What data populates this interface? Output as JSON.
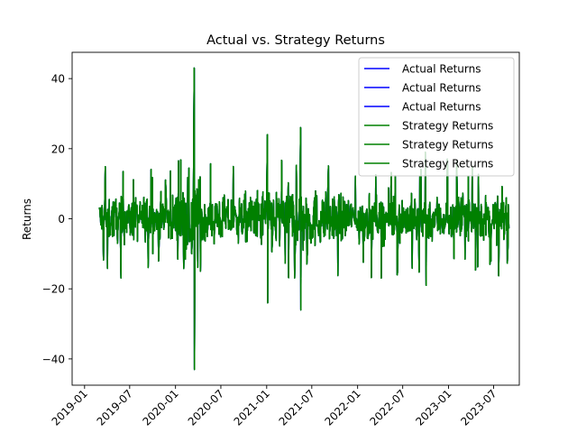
{
  "chart_data": {
    "type": "line",
    "title": "Actual vs. Strategy Returns",
    "xlabel": "",
    "ylabel": "Returns",
    "x_tick_labels": [
      "2019-01",
      "2019-07",
      "2020-01",
      "2020-07",
      "2021-01",
      "2021-07",
      "2022-01",
      "2022-07",
      "2023-01",
      "2023-07"
    ],
    "y_tick_labels": [
      "−40",
      "−20",
      "0",
      "20",
      "40"
    ],
    "y_ticks": [
      -40,
      -20,
      0,
      20,
      40
    ],
    "ylim": [
      -47.5,
      47.5
    ],
    "xlim": [
      "2018-11-12",
      "2023-10-12"
    ],
    "date_range": [
      "2019-03-01",
      "2023-08-31"
    ],
    "grid": false,
    "legend_position": "top-right",
    "series": [
      {
        "name": "Actual Returns",
        "color": "#0000ff"
      },
      {
        "name": "Actual Returns",
        "color": "#0000ff"
      },
      {
        "name": "Actual Returns",
        "color": "#0000ff"
      },
      {
        "name": "Strategy Returns",
        "color": "#008000"
      },
      {
        "name": "Strategy Returns",
        "color": "#008000"
      },
      {
        "name": "Strategy Returns",
        "color": "#008000"
      }
    ],
    "notable_points": [
      {
        "date": "2020-03-16",
        "value": 43
      },
      {
        "date": "2020-03-17",
        "value": -43
      },
      {
        "date": "2021-01-04",
        "value": 24
      },
      {
        "date": "2021-01-05",
        "value": -24
      },
      {
        "date": "2021-05-17",
        "value": 26
      },
      {
        "date": "2021-05-18",
        "value": -26
      },
      {
        "date": "2022-09-30",
        "value": 19
      },
      {
        "date": "2022-10-03",
        "value": -19
      }
    ]
  }
}
